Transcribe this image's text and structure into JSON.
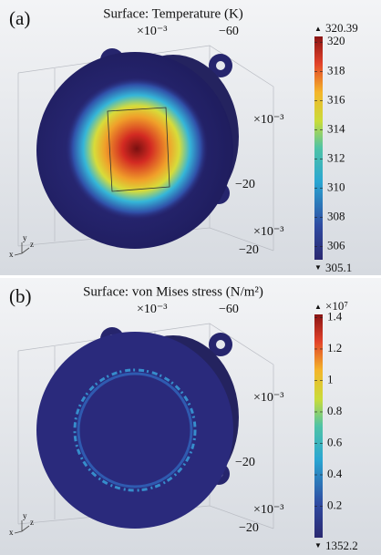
{
  "panels": [
    {
      "label": "(a)",
      "title": "Surface: Temperature (K)",
      "range": [
        305.1,
        320.39
      ],
      "ticks": [
        306,
        308,
        310,
        312,
        314,
        316,
        318,
        320
      ],
      "annotations": [
        "×10⁻³",
        "−60",
        "×10⁻³",
        "−20",
        "×10⁻³",
        "−20"
      ],
      "triad": [
        "y",
        "z",
        "x"
      ]
    },
    {
      "label": "(b)",
      "title": "Surface: von Mises stress (N/m²)",
      "multiplier": "×10⁷",
      "range": [
        1352.2,
        14200000
      ],
      "ticks": [
        {
          "value": 2000000,
          "label": "0.2"
        },
        {
          "value": 4000000,
          "label": "0.4"
        },
        {
          "value": 6000000,
          "label": "0.6"
        },
        {
          "value": 8000000,
          "label": "0.8"
        },
        {
          "value": 10000000,
          "label": "1"
        },
        {
          "value": 12000000,
          "label": "1.2"
        },
        {
          "value": 14000000,
          "label": "1.4"
        }
      ],
      "annotations": [
        "×10⁻³",
        "−60",
        "×10⁻³",
        "−20",
        "×10⁻³",
        "−20"
      ],
      "triad": [
        "y",
        "z",
        "x"
      ]
    }
  ]
}
